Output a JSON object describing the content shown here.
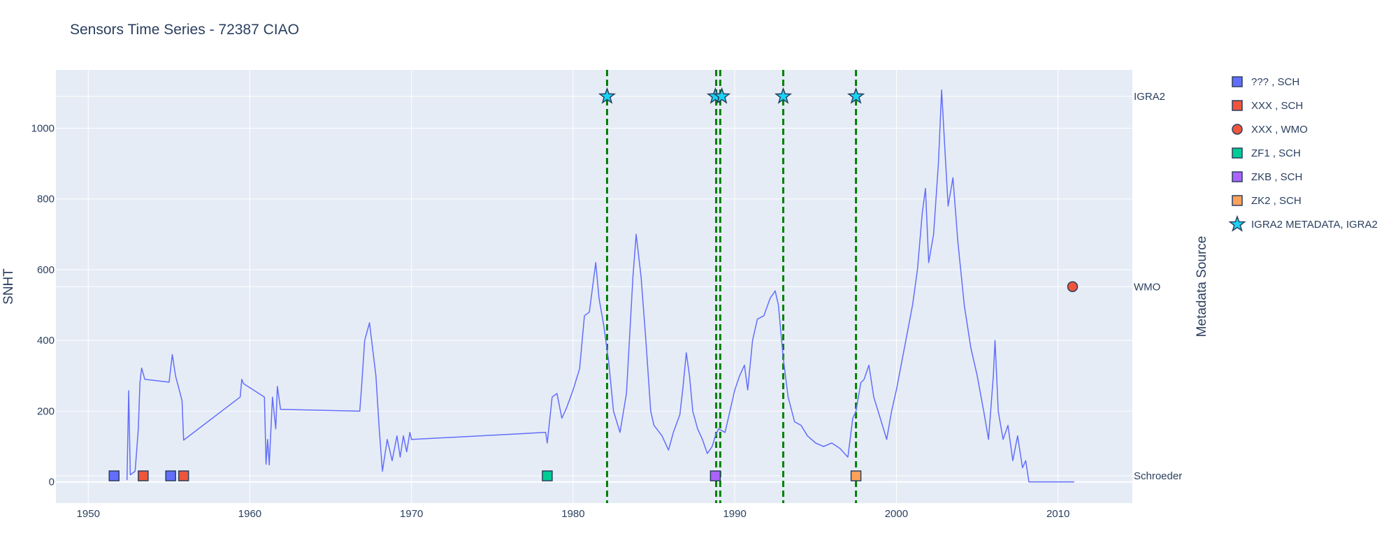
{
  "chart_data": {
    "type": "line",
    "title": "Sensors Time Series - 72387 CIAO",
    "xlabel": "",
    "ylabel": "SNHT",
    "y2label": "Metadata Source",
    "xlim": [
      1948,
      2014.6
    ],
    "ylim": [
      -60,
      1165
    ],
    "x_ticks": [
      1950,
      1960,
      1970,
      1980,
      1990,
      2000,
      2010
    ],
    "y_ticks": [
      0,
      200,
      400,
      600,
      800,
      1000
    ],
    "y2_ticks": [
      {
        "label": "Schroeder",
        "value": 17
      },
      {
        "label": "WMO",
        "value": 552
      },
      {
        "label": "IGRA2",
        "value": 1090
      }
    ],
    "grid": true,
    "legend_position": "right",
    "colors": {
      "plot_bg": "#e5ecf6",
      "grid": "#ffffff",
      "line": "#636efa",
      "vline": "#008000"
    },
    "series_line": {
      "points": [
        [
          1952.4,
          5
        ],
        [
          1952.5,
          258
        ],
        [
          1952.6,
          20
        ],
        [
          1952.9,
          30
        ],
        [
          1953.1,
          150
        ],
        [
          1953.2,
          280
        ],
        [
          1953.3,
          322
        ],
        [
          1953.5,
          290
        ],
        [
          1955.0,
          282
        ],
        [
          1955.2,
          360
        ],
        [
          1955.4,
          300
        ],
        [
          1955.8,
          230
        ],
        [
          1955.9,
          118
        ],
        [
          1959.4,
          240
        ],
        [
          1959.5,
          290
        ],
        [
          1959.6,
          278
        ],
        [
          1960.9,
          240
        ],
        [
          1961.0,
          50
        ],
        [
          1961.1,
          120
        ],
        [
          1961.2,
          48
        ],
        [
          1961.4,
          240
        ],
        [
          1961.6,
          150
        ],
        [
          1961.7,
          270
        ],
        [
          1961.9,
          205
        ],
        [
          1966.8,
          200
        ],
        [
          1966.9,
          260
        ],
        [
          1967.1,
          400
        ],
        [
          1967.4,
          450
        ],
        [
          1967.8,
          300
        ],
        [
          1968.0,
          150
        ],
        [
          1968.2,
          30
        ],
        [
          1968.5,
          120
        ],
        [
          1968.8,
          60
        ],
        [
          1969.1,
          130
        ],
        [
          1969.3,
          70
        ],
        [
          1969.5,
          130
        ],
        [
          1969.7,
          85
        ],
        [
          1969.9,
          140
        ],
        [
          1970.0,
          120
        ],
        [
          1978.3,
          140
        ],
        [
          1978.4,
          110
        ],
        [
          1978.7,
          240
        ],
        [
          1979.0,
          250
        ],
        [
          1979.3,
          180
        ],
        [
          1979.6,
          210
        ],
        [
          1980.0,
          260
        ],
        [
          1980.4,
          320
        ],
        [
          1980.7,
          470
        ],
        [
          1981.0,
          480
        ],
        [
          1981.4,
          620
        ],
        [
          1981.6,
          520
        ],
        [
          1981.9,
          440
        ],
        [
          1982.2,
          340
        ],
        [
          1982.5,
          200
        ],
        [
          1982.9,
          140
        ],
        [
          1983.3,
          250
        ],
        [
          1983.7,
          580
        ],
        [
          1983.9,
          700
        ],
        [
          1984.2,
          580
        ],
        [
          1984.5,
          400
        ],
        [
          1984.8,
          200
        ],
        [
          1985.0,
          160
        ],
        [
          1985.5,
          130
        ],
        [
          1985.9,
          90
        ],
        [
          1986.2,
          140
        ],
        [
          1986.6,
          190
        ],
        [
          1986.8,
          270
        ],
        [
          1987.0,
          365
        ],
        [
          1987.2,
          300
        ],
        [
          1987.4,
          200
        ],
        [
          1987.7,
          150
        ],
        [
          1988.0,
          120
        ],
        [
          1988.3,
          80
        ],
        [
          1988.6,
          100
        ],
        [
          1988.8,
          130
        ],
        [
          1989.0,
          150
        ],
        [
          1989.4,
          140
        ],
        [
          1989.7,
          200
        ],
        [
          1990.0,
          260
        ],
        [
          1990.3,
          300
        ],
        [
          1990.6,
          330
        ],
        [
          1990.8,
          260
        ],
        [
          1991.1,
          400
        ],
        [
          1991.4,
          460
        ],
        [
          1991.8,
          470
        ],
        [
          1992.2,
          520
        ],
        [
          1992.5,
          540
        ],
        [
          1992.7,
          500
        ],
        [
          1993.0,
          350
        ],
        [
          1993.3,
          240
        ],
        [
          1993.7,
          170
        ],
        [
          1994.1,
          160
        ],
        [
          1994.5,
          130
        ],
        [
          1995.0,
          110
        ],
        [
          1995.5,
          100
        ],
        [
          1996.0,
          110
        ],
        [
          1996.5,
          95
        ],
        [
          1997.0,
          70
        ],
        [
          1997.3,
          180
        ],
        [
          1997.5,
          200
        ],
        [
          1997.8,
          280
        ],
        [
          1998.0,
          290
        ],
        [
          1998.3,
          330
        ],
        [
          1998.6,
          240
        ],
        [
          1999.0,
          180
        ],
        [
          1999.4,
          120
        ],
        [
          1999.7,
          200
        ],
        [
          2000.0,
          260
        ],
        [
          2000.5,
          380
        ],
        [
          2001.0,
          500
        ],
        [
          2001.3,
          600
        ],
        [
          2001.6,
          760
        ],
        [
          2001.8,
          830
        ],
        [
          2002.0,
          620
        ],
        [
          2002.3,
          700
        ],
        [
          2002.6,
          900
        ],
        [
          2002.8,
          1108
        ],
        [
          2003.0,
          940
        ],
        [
          2003.2,
          780
        ],
        [
          2003.5,
          860
        ],
        [
          2003.8,
          680
        ],
        [
          2004.2,
          500
        ],
        [
          2004.6,
          380
        ],
        [
          2005.0,
          300
        ],
        [
          2005.4,
          200
        ],
        [
          2005.7,
          120
        ],
        [
          2006.0,
          300
        ],
        [
          2006.1,
          400
        ],
        [
          2006.3,
          200
        ],
        [
          2006.6,
          120
        ],
        [
          2006.9,
          160
        ],
        [
          2007.2,
          60
        ],
        [
          2007.5,
          130
        ],
        [
          2007.8,
          40
        ],
        [
          2008.0,
          60
        ],
        [
          2008.2,
          0
        ],
        [
          2011.0,
          0
        ]
      ]
    },
    "vertical_lines": [
      1982.1,
      1988.85,
      1989.1,
      1993.0,
      1997.5
    ],
    "markers": [
      {
        "series": "??? , SCH",
        "x": [
          1951.6,
          1955.1
        ],
        "y": [
          17,
          17
        ],
        "symbol": "square",
        "color": "#636efa"
      },
      {
        "series": "XXX , SCH",
        "x": [
          1953.4,
          1955.9
        ],
        "y": [
          17,
          17
        ],
        "symbol": "square",
        "color": "#ef553b"
      },
      {
        "series": "XXX , WMO",
        "x": [
          2010.9
        ],
        "y": [
          552
        ],
        "symbol": "circle",
        "color": "#ef553b"
      },
      {
        "series": "ZF1 , SCH",
        "x": [
          1978.4
        ],
        "y": [
          17
        ],
        "symbol": "square",
        "color": "#00cc96"
      },
      {
        "series": "ZKB , SCH",
        "x": [
          1988.8
        ],
        "y": [
          17
        ],
        "symbol": "square",
        "color": "#ab63fa"
      },
      {
        "series": "ZK2 , SCH",
        "x": [
          1997.5
        ],
        "y": [
          17
        ],
        "symbol": "square",
        "color": "#ffa15a"
      },
      {
        "series": "IGRA2 METADATA, IGRA2",
        "x": [
          1982.1,
          1988.8,
          1989.2,
          1993.0,
          1997.5
        ],
        "y": [
          1090,
          1090,
          1090,
          1090,
          1090
        ],
        "symbol": "star",
        "color": "#19d3f3"
      }
    ],
    "legend": [
      {
        "label": "??? , SCH",
        "symbol": "square",
        "color": "#636efa"
      },
      {
        "label": "XXX , SCH",
        "symbol": "square",
        "color": "#ef553b"
      },
      {
        "label": "XXX , WMO",
        "symbol": "circle",
        "color": "#ef553b"
      },
      {
        "label": "ZF1 , SCH",
        "symbol": "square",
        "color": "#00cc96"
      },
      {
        "label": "ZKB , SCH",
        "symbol": "square",
        "color": "#ab63fa"
      },
      {
        "label": "ZK2 , SCH",
        "symbol": "square",
        "color": "#ffa15a"
      },
      {
        "label": "IGRA2 METADATA, IGRA2",
        "symbol": "star",
        "color": "#19d3f3"
      }
    ]
  }
}
